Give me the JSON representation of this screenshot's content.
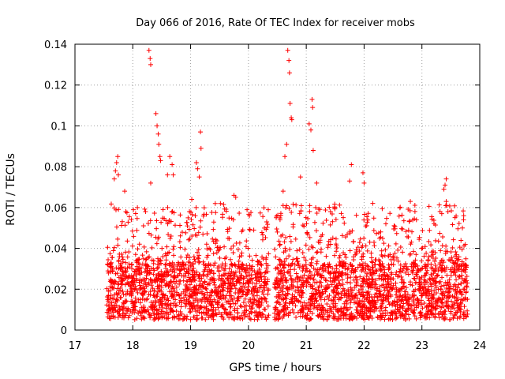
{
  "chart_data": {
    "type": "scatter",
    "title": "Day 066 of 2016, Rate Of TEC Index for receiver mobs",
    "xlabel": "GPS time / hours",
    "ylabel": "ROTI / TECUs",
    "xlim": [
      17,
      24
    ],
    "ylim": [
      0,
      0.14
    ],
    "x_ticks": [
      17,
      18,
      19,
      20,
      21,
      22,
      23,
      24
    ],
    "y_ticks": [
      0,
      0.02,
      0.04,
      0.06,
      0.08,
      0.1,
      0.12,
      0.14
    ],
    "x_tick_labels": [
      "17",
      "18",
      "19",
      "20",
      "21",
      "22",
      "23",
      "24"
    ],
    "y_tick_labels": [
      "0",
      "0.02",
      "0.04",
      "0.06",
      "0.08",
      "0.1",
      "0.12",
      "0.14"
    ],
    "grid": true,
    "marker": "+",
    "color": "#ff0000",
    "series": [
      {
        "name": "ROTI",
        "notable_points": [
          {
            "x": 17.68,
            "y": 0.074
          },
          {
            "x": 17.7,
            "y": 0.078
          },
          {
            "x": 17.72,
            "y": 0.082
          },
          {
            "x": 17.74,
            "y": 0.085
          },
          {
            "x": 17.75,
            "y": 0.076
          },
          {
            "x": 17.86,
            "y": 0.068
          },
          {
            "x": 17.88,
            "y": 0.058
          },
          {
            "x": 18.08,
            "y": 0.06
          },
          {
            "x": 18.22,
            "y": 0.058
          },
          {
            "x": 18.28,
            "y": 0.137
          },
          {
            "x": 18.3,
            "y": 0.133
          },
          {
            "x": 18.31,
            "y": 0.13
          },
          {
            "x": 18.31,
            "y": 0.072
          },
          {
            "x": 18.4,
            "y": 0.106
          },
          {
            "x": 18.42,
            "y": 0.1
          },
          {
            "x": 18.44,
            "y": 0.096
          },
          {
            "x": 18.45,
            "y": 0.091
          },
          {
            "x": 18.47,
            "y": 0.085
          },
          {
            "x": 18.48,
            "y": 0.083
          },
          {
            "x": 18.6,
            "y": 0.076
          },
          {
            "x": 18.64,
            "y": 0.085
          },
          {
            "x": 18.68,
            "y": 0.081
          },
          {
            "x": 18.7,
            "y": 0.076
          },
          {
            "x": 18.98,
            "y": 0.058
          },
          {
            "x": 19.02,
            "y": 0.064
          },
          {
            "x": 19.1,
            "y": 0.082
          },
          {
            "x": 19.12,
            "y": 0.079
          },
          {
            "x": 19.15,
            "y": 0.075
          },
          {
            "x": 19.17,
            "y": 0.097
          },
          {
            "x": 19.18,
            "y": 0.089
          },
          {
            "x": 19.75,
            "y": 0.066
          },
          {
            "x": 19.78,
            "y": 0.065
          },
          {
            "x": 20.48,
            "y": 0.055
          },
          {
            "x": 20.5,
            "y": 0.048
          },
          {
            "x": 20.6,
            "y": 0.068
          },
          {
            "x": 20.63,
            "y": 0.085
          },
          {
            "x": 20.66,
            "y": 0.091
          },
          {
            "x": 20.68,
            "y": 0.137
          },
          {
            "x": 20.7,
            "y": 0.132
          },
          {
            "x": 20.71,
            "y": 0.126
          },
          {
            "x": 20.72,
            "y": 0.111
          },
          {
            "x": 20.74,
            "y": 0.104
          },
          {
            "x": 20.75,
            "y": 0.103
          },
          {
            "x": 20.9,
            "y": 0.075
          },
          {
            "x": 21.05,
            "y": 0.101
          },
          {
            "x": 21.08,
            "y": 0.098
          },
          {
            "x": 21.1,
            "y": 0.113
          },
          {
            "x": 21.11,
            "y": 0.109
          },
          {
            "x": 21.12,
            "y": 0.088
          },
          {
            "x": 21.18,
            "y": 0.072
          },
          {
            "x": 21.75,
            "y": 0.073
          },
          {
            "x": 21.78,
            "y": 0.081
          },
          {
            "x": 21.98,
            "y": 0.077
          },
          {
            "x": 22.0,
            "y": 0.072
          },
          {
            "x": 22.15,
            "y": 0.062
          },
          {
            "x": 22.8,
            "y": 0.063
          },
          {
            "x": 23.38,
            "y": 0.069
          },
          {
            "x": 23.4,
            "y": 0.071
          },
          {
            "x": 23.42,
            "y": 0.074
          },
          {
            "x": 23.42,
            "y": 0.063
          },
          {
            "x": 23.45,
            "y": 0.058
          },
          {
            "x": 23.72,
            "y": 0.054
          },
          {
            "x": 23.7,
            "y": 0.05
          }
        ],
        "bulk_segments": [
          {
            "x_start": 17.55,
            "x_end": 20.35,
            "y_min": 0.005,
            "y_max": 0.032,
            "upper_envelope_max": 0.062
          },
          {
            "x_start": 20.45,
            "x_end": 23.8,
            "y_min": 0.005,
            "y_max": 0.032,
            "upper_envelope_max": 0.062
          }
        ],
        "data_gap": [
          20.35,
          20.45
        ]
      }
    ]
  }
}
